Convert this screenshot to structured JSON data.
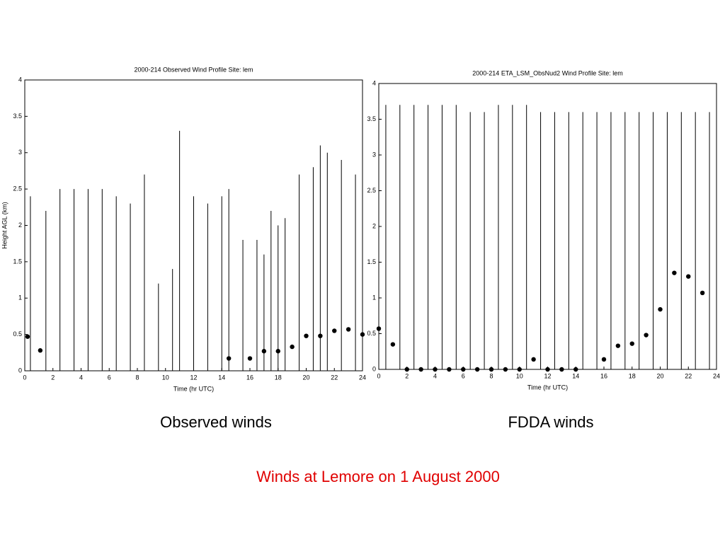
{
  "chart_data": [
    {
      "type": "scatter",
      "title": "2000-214   Observed Wind Profile   Site: lem",
      "x_label": "Time (hr UTC)",
      "y_label": "Height AGL (km)",
      "xlim": [
        0,
        24
      ],
      "ylim": [
        0,
        4
      ],
      "xticks": [
        0,
        2,
        4,
        6,
        8,
        10,
        12,
        14,
        16,
        18,
        20,
        22,
        24
      ],
      "yticks": [
        0,
        0.5,
        1,
        1.5,
        2,
        2.5,
        3,
        3.5,
        4
      ],
      "x": [
        0.2,
        1.1,
        14.5,
        16,
        17,
        18,
        19,
        20,
        21,
        22,
        23,
        24
      ],
      "values": [
        0.47,
        0.28,
        0.17,
        0.17,
        0.27,
        0.27,
        0.33,
        0.48,
        0.48,
        0.55,
        0.57,
        0.5
      ],
      "profile_times": [
        0.4,
        1.5,
        2.5,
        3.5,
        4.5,
        5.5,
        6.5,
        7.5,
        8.5,
        9.5,
        10.5,
        11,
        12,
        13,
        14,
        14.5,
        15.5,
        16.5,
        17,
        17.5,
        18,
        18.5,
        19.5,
        20.5,
        21,
        21.5,
        22.5,
        23.5
      ],
      "profile_tops": [
        2.4,
        2.2,
        2.5,
        2.5,
        2.5,
        2.5,
        2.4,
        2.3,
        2.7,
        1.2,
        1.4,
        3.3,
        2.4,
        2.3,
        2.4,
        2.5,
        1.8,
        1.8,
        1.6,
        2.2,
        2.0,
        2.1,
        2.7,
        2.8,
        3.1,
        3.0,
        2.9,
        2.7
      ],
      "color": "#000000"
    },
    {
      "type": "scatter",
      "title": "2000-214   ETA_LSM_ObsNud2  Wind Profile   Site: lem",
      "x_label": "Time (hr UTC)",
      "xlim": [
        0,
        24
      ],
      "ylim": [
        0,
        4
      ],
      "xticks": [
        0,
        2,
        4,
        6,
        8,
        10,
        12,
        14,
        16,
        18,
        20,
        22,
        24
      ],
      "yticks": [
        0,
        0.5,
        1,
        1.5,
        2,
        2.5,
        3,
        3.5,
        4
      ],
      "x": [
        0,
        1,
        2,
        3,
        4,
        5,
        6,
        7,
        8,
        9,
        10,
        11,
        12,
        13,
        14,
        16,
        17,
        18,
        19,
        20,
        21,
        22,
        23
      ],
      "values": [
        0.57,
        0.35,
        0,
        0,
        0,
        0,
        0,
        0,
        0,
        0,
        0,
        0.14,
        0,
        0,
        0,
        0.14,
        0.33,
        0.36,
        0.48,
        0.84,
        1.35,
        1.3,
        1.07
      ],
      "profile_times": [
        0.5,
        1.5,
        2.5,
        3.5,
        4.5,
        5.5,
        6.5,
        7.5,
        8.5,
        9.5,
        10.5,
        11.5,
        12.5,
        13.5,
        14.5,
        15.5,
        16.5,
        17.5,
        18.5,
        19.5,
        20.5,
        21.5,
        22.5,
        23.5
      ],
      "profile_tops": [
        3.7,
        3.7,
        3.7,
        3.7,
        3.7,
        3.7,
        3.6,
        3.6,
        3.7,
        3.7,
        3.7,
        3.6,
        3.6,
        3.6,
        3.6,
        3.6,
        3.6,
        3.6,
        3.6,
        3.6,
        3.6,
        3.6,
        3.6,
        3.6
      ],
      "color": "#000000"
    }
  ],
  "captions": [
    "Observed winds",
    "FDDA winds"
  ],
  "footer": "Winds at Lemore on 1 August 2000"
}
